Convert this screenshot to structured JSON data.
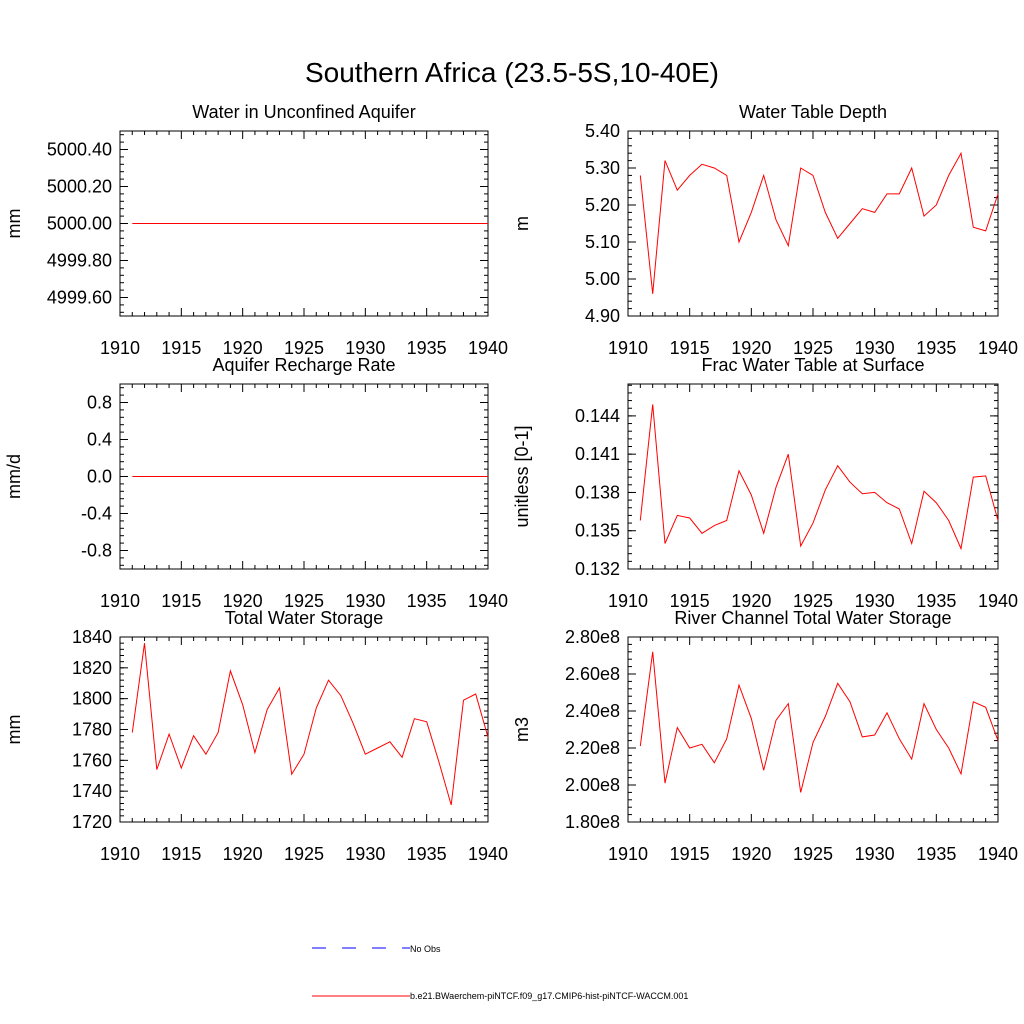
{
  "title": "Southern Africa (23.5-5S,10-40E)",
  "colors": {
    "model": "#ff0000",
    "obs": "#0000ff",
    "axis": "#000000"
  },
  "legend": {
    "obs_label": "No Obs",
    "model_label": "b.e21.BWaerchem-piNTCF.f09_g17.CMIP6-hist-piNTCF-WACCM.001"
  },
  "chart_data": [
    {
      "type": "line",
      "title": "Water in Unconfined Aquifer",
      "ylabel": "mm",
      "xlim": [
        1910,
        1940
      ],
      "ylim": [
        4999.5,
        5000.5
      ],
      "xticks": [
        1910,
        1915,
        1920,
        1925,
        1930,
        1935,
        1940
      ],
      "xtick_labels": [
        "1910",
        "1915",
        "1920",
        "1925",
        "1930",
        "1935",
        "1940"
      ],
      "yticks": [
        4999.6,
        4999.8,
        5000.0,
        5000.2,
        5000.4
      ],
      "ytick_labels": [
        "4999.60",
        "4999.80",
        "5000.00",
        "5000.20",
        "5000.40"
      ],
      "x": [
        1911,
        1912,
        1913,
        1914,
        1915,
        1916,
        1917,
        1918,
        1919,
        1920,
        1921,
        1922,
        1923,
        1924,
        1925,
        1926,
        1927,
        1928,
        1929,
        1930,
        1931,
        1932,
        1933,
        1934,
        1935,
        1936,
        1937,
        1938,
        1939,
        1940
      ],
      "series": [
        {
          "values": [
            5000,
            5000,
            5000,
            5000,
            5000,
            5000,
            5000,
            5000,
            5000,
            5000,
            5000,
            5000,
            5000,
            5000,
            5000,
            5000,
            5000,
            5000,
            5000,
            5000,
            5000,
            5000,
            5000,
            5000,
            5000,
            5000,
            5000,
            5000,
            5000,
            5000
          ]
        }
      ]
    },
    {
      "type": "line",
      "title": "Water Table Depth",
      "ylabel": "m",
      "xlim": [
        1910,
        1940
      ],
      "ylim": [
        4.9,
        5.4
      ],
      "xticks": [
        1910,
        1915,
        1920,
        1925,
        1930,
        1935,
        1940
      ],
      "xtick_labels": [
        "1910",
        "1915",
        "1920",
        "1925",
        "1930",
        "1935",
        "1940"
      ],
      "yticks": [
        4.9,
        5.0,
        5.1,
        5.2,
        5.3,
        5.4
      ],
      "ytick_labels": [
        "4.90",
        "5.00",
        "5.10",
        "5.20",
        "5.30",
        "5.40"
      ],
      "x": [
        1911,
        1912,
        1913,
        1914,
        1915,
        1916,
        1917,
        1918,
        1919,
        1920,
        1921,
        1922,
        1923,
        1924,
        1925,
        1926,
        1927,
        1928,
        1929,
        1930,
        1931,
        1932,
        1933,
        1934,
        1935,
        1936,
        1937,
        1938,
        1939,
        1940
      ],
      "series": [
        {
          "values": [
            5.28,
            4.96,
            5.32,
            5.24,
            5.28,
            5.31,
            5.3,
            5.28,
            5.1,
            5.18,
            5.28,
            5.16,
            5.09,
            5.3,
            5.28,
            5.18,
            5.11,
            5.15,
            5.19,
            5.18,
            5.23,
            5.23,
            5.3,
            5.17,
            5.2,
            5.28,
            5.34,
            5.14,
            5.13,
            5.23
          ]
        }
      ]
    },
    {
      "type": "line",
      "title": "Aquifer Recharge Rate",
      "ylabel": "mm/d",
      "xlim": [
        1910,
        1940
      ],
      "ylim": [
        -1.0,
        1.0
      ],
      "xticks": [
        1910,
        1915,
        1920,
        1925,
        1930,
        1935,
        1940
      ],
      "xtick_labels": [
        "1910",
        "1915",
        "1920",
        "1925",
        "1930",
        "1935",
        "1940"
      ],
      "yticks": [
        -0.8,
        -0.4,
        0.0,
        0.4,
        0.8
      ],
      "ytick_labels": [
        "-0.8",
        "-0.4",
        "0.0",
        "0.4",
        "0.8"
      ],
      "x": [
        1911,
        1912,
        1913,
        1914,
        1915,
        1916,
        1917,
        1918,
        1919,
        1920,
        1921,
        1922,
        1923,
        1924,
        1925,
        1926,
        1927,
        1928,
        1929,
        1930,
        1931,
        1932,
        1933,
        1934,
        1935,
        1936,
        1937,
        1938,
        1939,
        1940
      ],
      "series": [
        {
          "values": [
            0,
            0,
            0,
            0,
            0,
            0,
            0,
            0,
            0,
            0,
            0,
            0,
            0,
            0,
            0,
            0,
            0,
            0,
            0,
            0,
            0,
            0,
            0,
            0,
            0,
            0,
            0,
            0,
            0,
            0
          ]
        }
      ]
    },
    {
      "type": "line",
      "title": "Frac Water Table at Surface",
      "ylabel": "unitless [0-1]",
      "xlim": [
        1910,
        1940
      ],
      "ylim": [
        0.132,
        0.1465
      ],
      "xticks": [
        1910,
        1915,
        1920,
        1925,
        1930,
        1935,
        1940
      ],
      "xtick_labels": [
        "1910",
        "1915",
        "1920",
        "1925",
        "1930",
        "1935",
        "1940"
      ],
      "yticks": [
        0.132,
        0.135,
        0.138,
        0.141,
        0.144
      ],
      "ytick_labels": [
        "0.132",
        "0.135",
        "0.138",
        "0.141",
        "0.144"
      ],
      "x": [
        1911,
        1912,
        1913,
        1914,
        1915,
        1916,
        1917,
        1918,
        1919,
        1920,
        1921,
        1922,
        1923,
        1924,
        1925,
        1926,
        1927,
        1928,
        1929,
        1930,
        1931,
        1932,
        1933,
        1934,
        1935,
        1936,
        1937,
        1938,
        1939,
        1940
      ],
      "series": [
        {
          "values": [
            0.1358,
            0.1449,
            0.134,
            0.1362,
            0.136,
            0.1348,
            0.1354,
            0.1358,
            0.1397,
            0.1378,
            0.1348,
            0.1384,
            0.141,
            0.1338,
            0.1356,
            0.1382,
            0.1401,
            0.1388,
            0.1379,
            0.138,
            0.1372,
            0.1367,
            0.134,
            0.1381,
            0.1372,
            0.1358,
            0.1336,
            0.1392,
            0.1393,
            0.1358
          ]
        }
      ]
    },
    {
      "type": "line",
      "title": "Total Water Storage",
      "ylabel": "mm",
      "xlim": [
        1910,
        1940
      ],
      "ylim": [
        1720,
        1840
      ],
      "xticks": [
        1910,
        1915,
        1920,
        1925,
        1930,
        1935,
        1940
      ],
      "xtick_labels": [
        "1910",
        "1915",
        "1920",
        "1925",
        "1930",
        "1935",
        "1940"
      ],
      "yticks": [
        1720,
        1740,
        1760,
        1780,
        1800,
        1820,
        1840
      ],
      "ytick_labels": [
        "1720",
        "1740",
        "1760",
        "1780",
        "1800",
        "1820",
        "1840"
      ],
      "x": [
        1911,
        1912,
        1913,
        1914,
        1915,
        1916,
        1917,
        1918,
        1919,
        1920,
        1921,
        1922,
        1923,
        1924,
        1925,
        1926,
        1927,
        1928,
        1929,
        1930,
        1931,
        1932,
        1933,
        1934,
        1935,
        1936,
        1937,
        1938,
        1939,
        1940
      ],
      "series": [
        {
          "values": [
            1778,
            1836,
            1754,
            1777,
            1755,
            1776,
            1764,
            1778,
            1818,
            1796,
            1765,
            1793,
            1807,
            1751,
            1764,
            1794,
            1812,
            1802,
            1784,
            1764,
            1768,
            1772,
            1762,
            1787,
            1785,
            1759,
            1731,
            1799,
            1803,
            1775
          ]
        }
      ]
    },
    {
      "type": "line",
      "title": "River Channel Total Water Storage",
      "ylabel": "m3",
      "xlim": [
        1910,
        1940
      ],
      "ylim": [
        180000000,
        280000000
      ],
      "xticks": [
        1910,
        1915,
        1920,
        1925,
        1930,
        1935,
        1940
      ],
      "xtick_labels": [
        "1910",
        "1915",
        "1920",
        "1925",
        "1930",
        "1935",
        "1940"
      ],
      "yticks": [
        180000000,
        200000000,
        220000000,
        240000000,
        260000000,
        280000000
      ],
      "ytick_labels": [
        "1.80e8",
        "2.00e8",
        "2.20e8",
        "2.40e8",
        "2.60e8",
        "2.80e8"
      ],
      "x": [
        1911,
        1912,
        1913,
        1914,
        1915,
        1916,
        1917,
        1918,
        1919,
        1920,
        1921,
        1922,
        1923,
        1924,
        1925,
        1926,
        1927,
        1928,
        1929,
        1930,
        1931,
        1932,
        1933,
        1934,
        1935,
        1936,
        1937,
        1938,
        1939,
        1940
      ],
      "series": [
        {
          "values": [
            221000000,
            272000000,
            201000000,
            231000000,
            220000000,
            222000000,
            212000000,
            225000000,
            254000000,
            236000000,
            208000000,
            235000000,
            244000000,
            196000000,
            223000000,
            237000000,
            255000000,
            245000000,
            226000000,
            227000000,
            239000000,
            225000000,
            214000000,
            244000000,
            230000000,
            220000000,
            206000000,
            245000000,
            242000000,
            224000000
          ]
        }
      ]
    }
  ]
}
